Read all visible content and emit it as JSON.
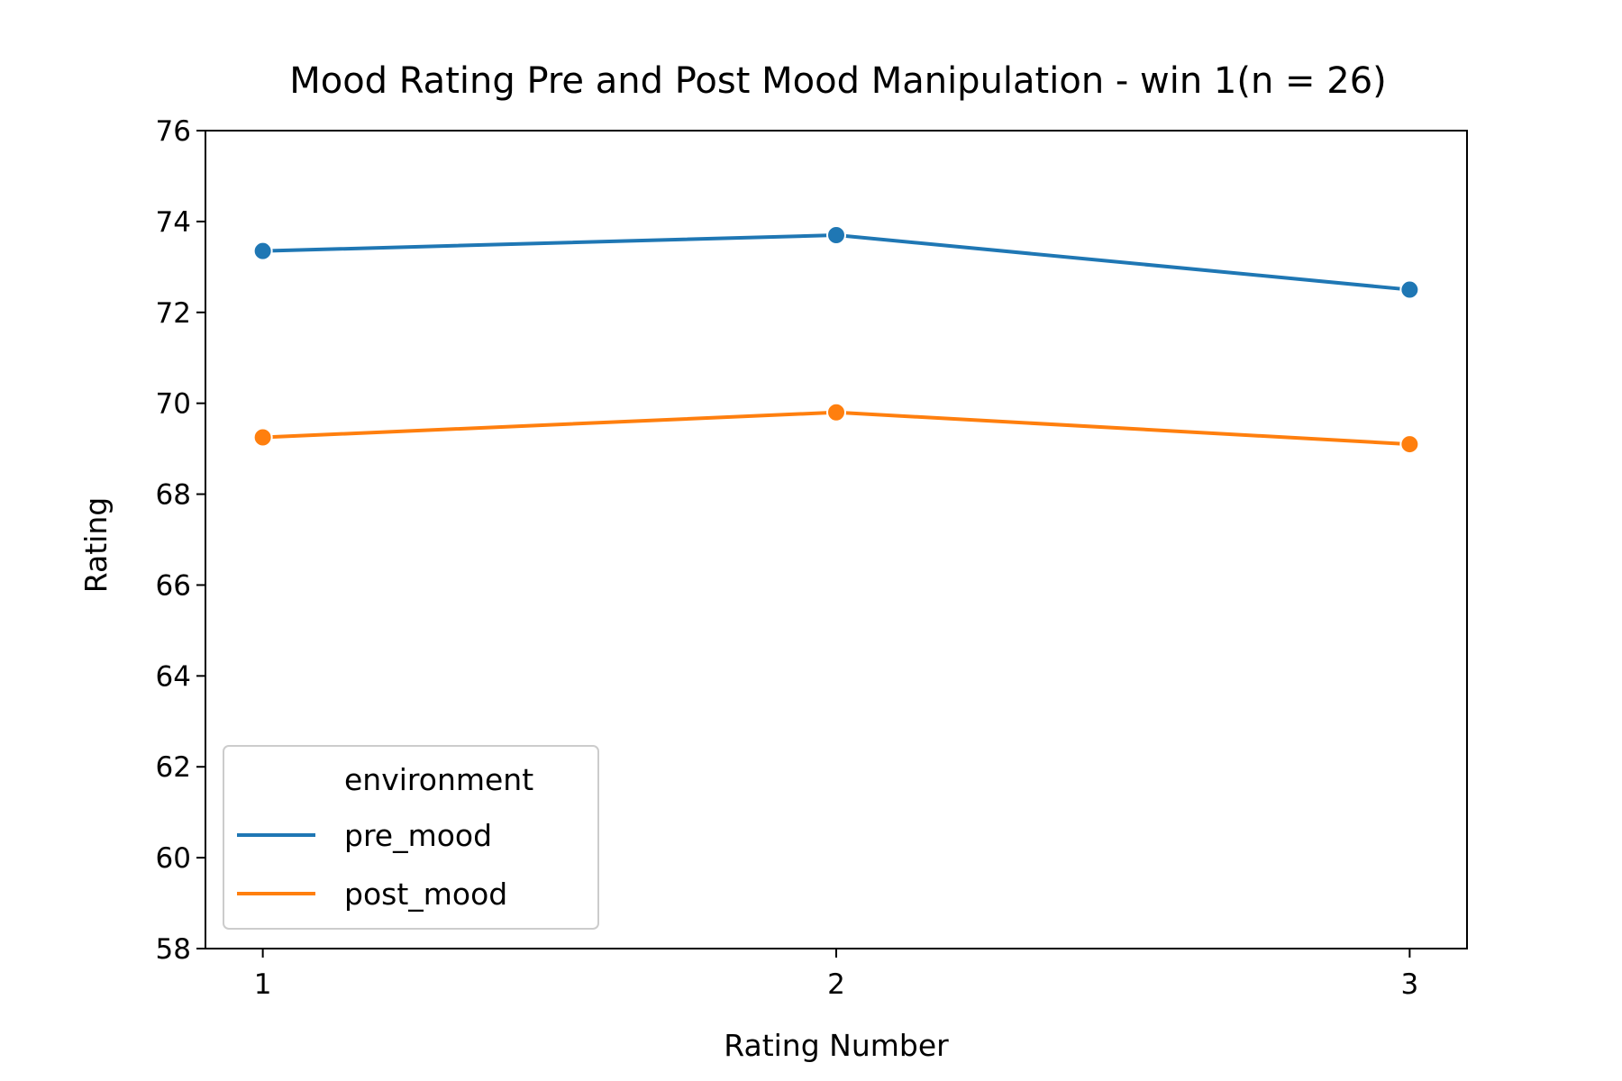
{
  "chart_data": {
    "type": "line",
    "title": "Mood Rating Pre and Post Mood Manipulation - win 1(n = 26)",
    "xlabel": "Rating Number",
    "ylabel": "Rating",
    "x": [
      1,
      2,
      3
    ],
    "x_ticks": [
      "1",
      "2",
      "3"
    ],
    "xlim": [
      0.9,
      3.1
    ],
    "ylim": [
      58,
      76
    ],
    "y_ticks": [
      58,
      60,
      62,
      64,
      66,
      68,
      70,
      72,
      74,
      76
    ],
    "grid": false,
    "legend": {
      "title": "environment",
      "placement": "lower-left"
    },
    "series": [
      {
        "name": "pre_mood",
        "color": "#1f77b4",
        "values": [
          73.35,
          73.7,
          72.5
        ]
      },
      {
        "name": "post_mood",
        "color": "#ff7f0e",
        "values": [
          69.25,
          69.8,
          69.1
        ]
      }
    ]
  }
}
